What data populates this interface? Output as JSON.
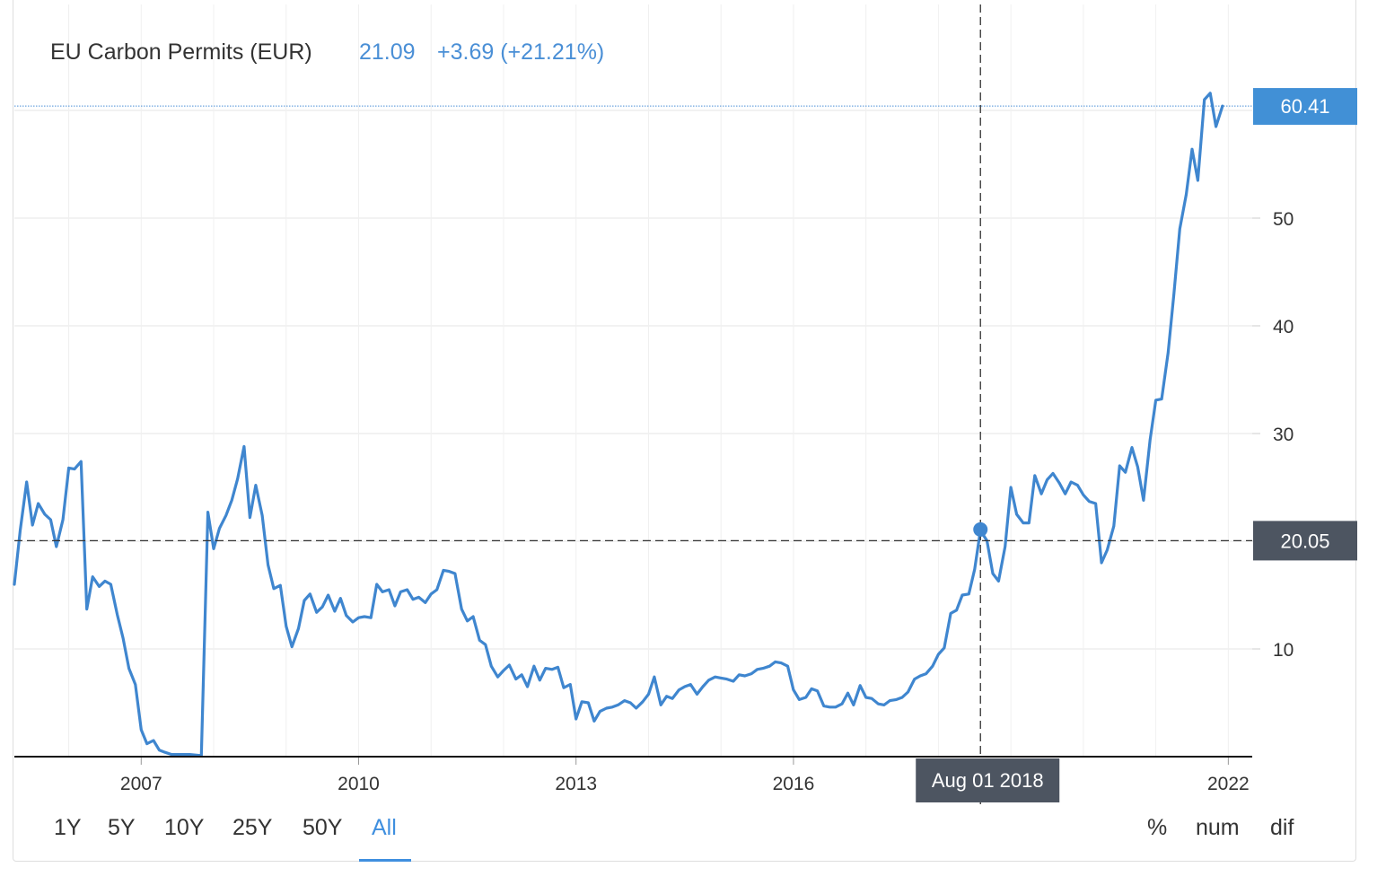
{
  "header": {
    "name": "EU Carbon Permits (EUR)",
    "price": "21.09",
    "change": "+3.69 (+21.21%)"
  },
  "crosshair": {
    "date_label": "Aug 01 2018",
    "value_label": "20.05",
    "x": 2018.58,
    "y": 20.05
  },
  "last_price": {
    "label": "60.41",
    "value": 60.41
  },
  "range_buttons": [
    {
      "label": "1Y"
    },
    {
      "label": "5Y"
    },
    {
      "label": "10Y"
    },
    {
      "label": "25Y"
    },
    {
      "label": "50Y"
    },
    {
      "label": "All",
      "active": true
    }
  ],
  "mode_buttons": [
    {
      "label": "%"
    },
    {
      "label": "num"
    },
    {
      "label": "dif"
    }
  ],
  "colors": {
    "line": "#3f86cf",
    "label_fill_blue": "#4190d6",
    "label_fill_dark": "#4d5561",
    "grid": "#e6e6e6"
  },
  "chart_data": {
    "type": "line",
    "title": "EU Carbon Permits (EUR)",
    "xlabel": "",
    "ylabel": "",
    "xlim": [
      2005.25,
      2022.33
    ],
    "ylim": [
      0,
      70
    ],
    "x_ticks": [
      2007,
      2010,
      2013,
      2016,
      2022
    ],
    "x_tick_labels": [
      "2007",
      "2010",
      "2013",
      "2016",
      "2022"
    ],
    "y_ticks": [
      10,
      20,
      30,
      40,
      50
    ],
    "y_tick_labels": [
      "10",
      "",
      "30",
      "40",
      "50"
    ],
    "grid": true,
    "series": [
      {
        "x": [
          2005.25,
          2005.33,
          2005.42,
          2005.5,
          2005.58,
          2005.67,
          2005.75,
          2005.83,
          2005.92,
          2006.0,
          2006.08,
          2006.17,
          2006.25,
          2006.33,
          2006.42,
          2006.5,
          2006.58,
          2006.67,
          2006.75,
          2006.83,
          2006.92,
          2007.0,
          2007.08,
          2007.17,
          2007.25,
          2007.33,
          2007.42,
          2007.5,
          2007.58,
          2007.67,
          2007.75,
          2007.83,
          2007.92,
          2008.0,
          2008.08,
          2008.17,
          2008.25,
          2008.33,
          2008.42,
          2008.5,
          2008.58,
          2008.67,
          2008.75,
          2008.83,
          2008.92,
          2009.0,
          2009.08,
          2009.17,
          2009.25,
          2009.33,
          2009.42,
          2009.5,
          2009.58,
          2009.67,
          2009.75,
          2009.83,
          2009.92,
          2010.0,
          2010.08,
          2010.17,
          2010.25,
          2010.33,
          2010.42,
          2010.5,
          2010.58,
          2010.67,
          2010.75,
          2010.83,
          2010.92,
          2011.0,
          2011.08,
          2011.17,
          2011.25,
          2011.33,
          2011.42,
          2011.5,
          2011.58,
          2011.67,
          2011.75,
          2011.83,
          2011.92,
          2012.0,
          2012.08,
          2012.17,
          2012.25,
          2012.33,
          2012.42,
          2012.5,
          2012.58,
          2012.67,
          2012.75,
          2012.83,
          2012.92,
          2013.0,
          2013.08,
          2013.17,
          2013.25,
          2013.33,
          2013.42,
          2013.5,
          2013.58,
          2013.67,
          2013.75,
          2013.83,
          2013.92,
          2014.0,
          2014.08,
          2014.17,
          2014.25,
          2014.33,
          2014.42,
          2014.5,
          2014.58,
          2014.67,
          2014.75,
          2014.83,
          2014.92,
          2015.0,
          2015.08,
          2015.17,
          2015.25,
          2015.33,
          2015.42,
          2015.5,
          2015.58,
          2015.67,
          2015.75,
          2015.83,
          2015.92,
          2016.0,
          2016.08,
          2016.17,
          2016.25,
          2016.33,
          2016.42,
          2016.5,
          2016.58,
          2016.67,
          2016.75,
          2016.83,
          2016.92,
          2017.0,
          2017.08,
          2017.17,
          2017.25,
          2017.33,
          2017.42,
          2017.5,
          2017.58,
          2017.67,
          2017.75,
          2017.83,
          2017.92,
          2018.0,
          2018.08,
          2018.17,
          2018.25,
          2018.33,
          2018.42,
          2018.5,
          2018.58,
          2018.67,
          2018.75,
          2018.83,
          2018.92,
          2019.0,
          2019.08,
          2019.17,
          2019.25,
          2019.33,
          2019.42,
          2019.5,
          2019.58,
          2019.67,
          2019.75,
          2019.83,
          2019.92,
          2020.0,
          2020.08,
          2020.17,
          2020.25,
          2020.33,
          2020.42,
          2020.5,
          2020.58,
          2020.67,
          2020.75,
          2020.83,
          2020.92,
          2021.0,
          2021.08,
          2021.17,
          2021.25,
          2021.33,
          2021.42,
          2021.5,
          2021.58,
          2021.67,
          2021.75,
          2021.83,
          2021.92
        ],
        "y": [
          16.0,
          21.0,
          25.5,
          21.5,
          23.5,
          22.5,
          22.0,
          19.5,
          22.0,
          26.8,
          26.7,
          27.4,
          13.7,
          16.7,
          15.8,
          16.3,
          16.0,
          13.2,
          11.0,
          8.2,
          6.7,
          2.5,
          1.2,
          1.5,
          0.6,
          0.4,
          0.2,
          0.2,
          0.2,
          0.2,
          0.15,
          0.1,
          22.7,
          19.3,
          21.2,
          22.4,
          23.8,
          25.8,
          28.8,
          22.2,
          25.2,
          22.4,
          17.8,
          15.6,
          15.9,
          12.1,
          10.2,
          11.9,
          14.5,
          15.1,
          13.4,
          13.9,
          15.0,
          13.5,
          14.7,
          13.1,
          12.5,
          12.9,
          13.0,
          12.9,
          16.0,
          15.3,
          15.5,
          14.0,
          15.3,
          15.5,
          14.6,
          14.8,
          14.3,
          15.1,
          15.5,
          17.3,
          17.2,
          17.0,
          13.7,
          12.6,
          13.0,
          10.8,
          10.4,
          8.4,
          7.4,
          8.0,
          8.5,
          7.2,
          7.6,
          6.5,
          8.4,
          7.1,
          8.2,
          8.1,
          8.3,
          6.4,
          6.7,
          3.5,
          5.1,
          5.0,
          3.3,
          4.2,
          4.5,
          4.6,
          4.8,
          5.2,
          5.0,
          4.5,
          5.1,
          5.8,
          7.4,
          4.8,
          5.6,
          5.4,
          6.2,
          6.5,
          6.7,
          5.8,
          6.5,
          7.1,
          7.4,
          7.3,
          7.2,
          7.0,
          7.6,
          7.5,
          7.7,
          8.1,
          8.2,
          8.4,
          8.8,
          8.7,
          8.4,
          6.2,
          5.3,
          5.5,
          6.3,
          6.1,
          4.7,
          4.6,
          4.6,
          4.9,
          5.9,
          4.8,
          6.6,
          5.5,
          5.4,
          4.9,
          4.8,
          5.2,
          5.3,
          5.5,
          6.0,
          7.2,
          7.5,
          7.7,
          8.4,
          9.5,
          10.1,
          13.3,
          13.6,
          15.0,
          15.1,
          17.4,
          21.0,
          20.05,
          17.0,
          16.3,
          19.5,
          25.0,
          22.5,
          21.7,
          21.7,
          26.1,
          24.4,
          25.7,
          26.3,
          25.4,
          24.4,
          25.5,
          25.2,
          24.3,
          23.7,
          23.5,
          18.0,
          19.2,
          21.4,
          27.0,
          26.4,
          28.7,
          26.9,
          23.8,
          29.4,
          33.1,
          33.2,
          37.5,
          43.0,
          49.0,
          52.2,
          56.4,
          53.5,
          61.0,
          61.6,
          58.5,
          60.41
        ]
      }
    ]
  }
}
